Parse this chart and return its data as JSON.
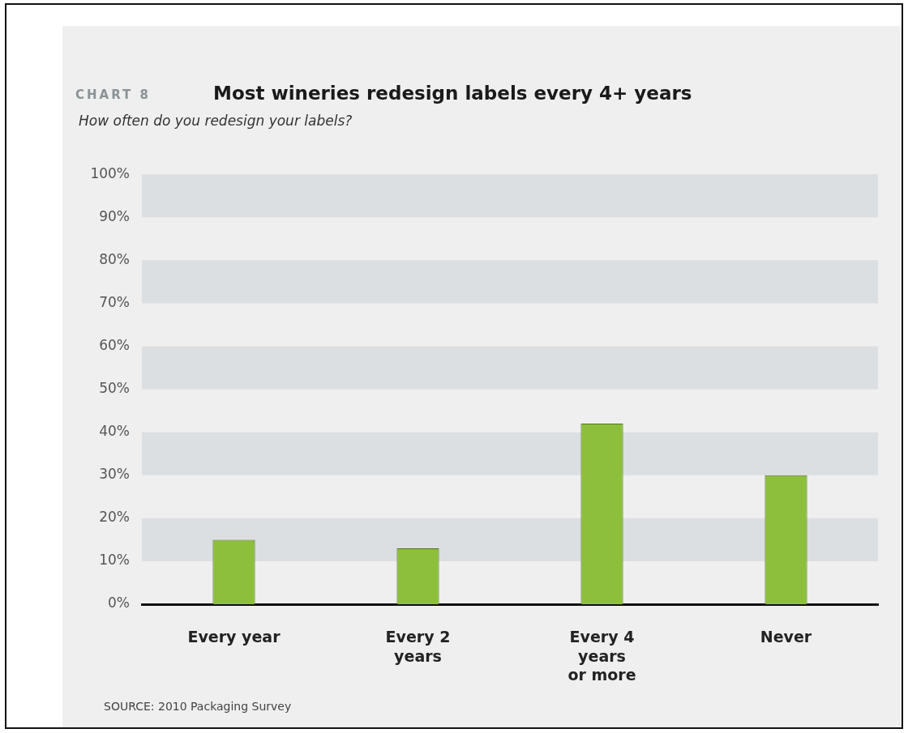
{
  "chart_data": {
    "type": "bar",
    "title": "Most wineries redesign labels every 4+ years",
    "subtitle": "How often do you redesign your labels?",
    "annotations": [
      "CHART 8",
      "SOURCE: 2010 Packaging Survey"
    ],
    "categories": [
      "Every year",
      "Every 2 years",
      "Every 4 years or more",
      "Never"
    ],
    "values": [
      15,
      13,
      42,
      30
    ],
    "color": "#8dbf3c",
    "ylim": [
      0,
      100
    ],
    "yticks": [
      {
        "value": 0,
        "label": "0%"
      },
      {
        "value": 10,
        "label": "10%"
      },
      {
        "value": 20,
        "label": "20%"
      },
      {
        "value": 30,
        "label": "30%"
      },
      {
        "value": 40,
        "label": "40%"
      },
      {
        "value": 50,
        "label": "50%"
      },
      {
        "value": 60,
        "label": "60%"
      },
      {
        "value": 70,
        "label": "70%"
      },
      {
        "value": 80,
        "label": "80%"
      },
      {
        "value": 90,
        "label": "90%"
      },
      {
        "value": 100,
        "label": "100%"
      }
    ],
    "bands": [
      {
        "axis": "y",
        "from": 10,
        "to": 20,
        "color": "#dcdfe2"
      },
      {
        "axis": "y",
        "from": 30,
        "to": 40,
        "color": "#dcdfe2"
      },
      {
        "axis": "y",
        "from": 50,
        "to": 60,
        "color": "#dcdfe2"
      },
      {
        "axis": "y",
        "from": 70,
        "to": 80,
        "color": "#dcdfe2"
      },
      {
        "axis": "y",
        "from": 90,
        "to": 100,
        "color": "#dcdfe2"
      }
    ],
    "grid": false,
    "legend": false
  }
}
